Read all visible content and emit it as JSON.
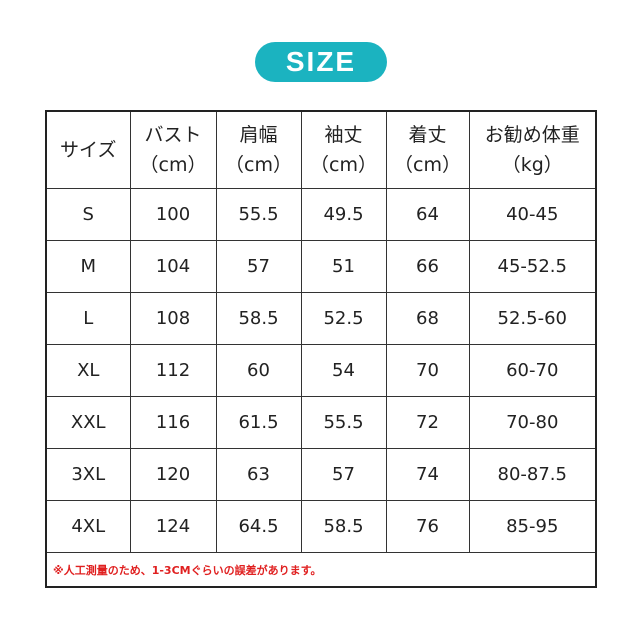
{
  "title": "SIZE",
  "accent": "#1bb3c0",
  "headers": [
    [
      "サイズ",
      ""
    ],
    [
      "バスト",
      "（cm）"
    ],
    [
      "肩幅",
      "（cm）"
    ],
    [
      "袖丈",
      "（cm）"
    ],
    [
      "着丈",
      "（cm）"
    ],
    [
      "お勧め体重",
      "（kg）"
    ]
  ],
  "rows": [
    [
      "S",
      "100",
      "55.5",
      "49.5",
      "64",
      "40-45"
    ],
    [
      "M",
      "104",
      "57",
      "51",
      "66",
      "45-52.5"
    ],
    [
      "L",
      "108",
      "58.5",
      "52.5",
      "68",
      "52.5-60"
    ],
    [
      "XL",
      "112",
      "60",
      "54",
      "70",
      "60-70"
    ],
    [
      "XXL",
      "116",
      "61.5",
      "55.5",
      "72",
      "70-80"
    ],
    [
      "3XL",
      "120",
      "63",
      "57",
      "74",
      "80-87.5"
    ],
    [
      "4XL",
      "124",
      "64.5",
      "58.5",
      "76",
      "85-95"
    ]
  ],
  "note": "※人工測量のため、1-3CMぐらいの誤差があります。"
}
